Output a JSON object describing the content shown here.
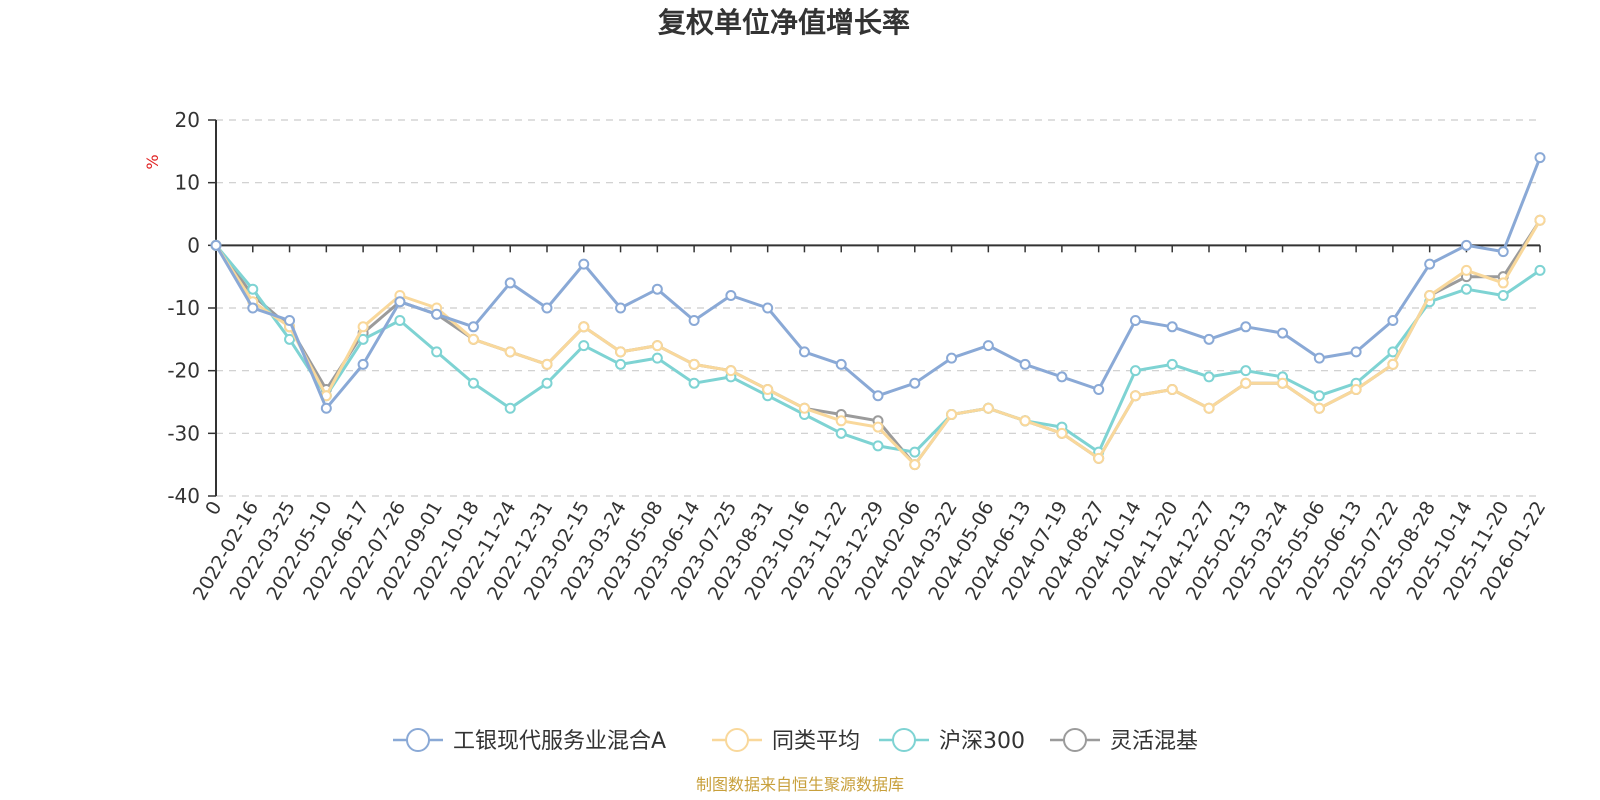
{
  "chart_data": {
    "type": "line",
    "title": "复权单位净值增长率",
    "ylabel": "%",
    "ylim": [
      -40,
      20
    ],
    "yticks": [
      20,
      10,
      0,
      -10,
      -20,
      -30,
      -40
    ],
    "grid": true,
    "legend_position": "bottom",
    "source": "制图数据来自恒生聚源数据库",
    "x": [
      "0",
      "2022-02-16",
      "2022-03-25",
      "2022-05-10",
      "2022-06-17",
      "2022-07-26",
      "2022-09-01",
      "2022-10-18",
      "2022-11-24",
      "2022-12-31",
      "2023-02-15",
      "2023-03-24",
      "2023-05-08",
      "2023-06-14",
      "2023-07-25",
      "2023-08-31",
      "2023-10-16",
      "2023-11-22",
      "2023-12-29",
      "2024-02-06",
      "2024-03-22",
      "2024-05-06",
      "2024-06-13",
      "2024-07-19",
      "2024-08-27",
      "2024-10-14",
      "2024-11-20",
      "2024-12-27",
      "2025-02-13",
      "2025-03-24",
      "2025-05-06",
      "2025-06-13",
      "2025-07-22",
      "2025-08-28",
      "2025-10-14",
      "2025-11-20",
      "2026-01-22"
    ],
    "series": [
      {
        "name": "工银现代服务业混合A",
        "color": "#8aa9d6",
        "values": [
          0,
          -10,
          -12,
          -26,
          -19,
          -9,
          -11,
          -13,
          -6,
          -10,
          -3,
          -10,
          -7,
          -12,
          -8,
          -10,
          -17,
          -19,
          -24,
          -22,
          -18,
          -16,
          -19,
          -21,
          -23,
          -12,
          -13,
          -15,
          -13,
          -14,
          -18,
          -17,
          -12,
          -3,
          0,
          -1,
          14
        ]
      },
      {
        "name": "同类平均",
        "color": "#f9d89b",
        "values": [
          0,
          -9,
          -13,
          -24,
          -13,
          -8,
          -10,
          -15,
          -17,
          -19,
          -13,
          -17,
          -16,
          -19,
          -20,
          -23,
          -26,
          -28,
          -29,
          -35,
          -27,
          -26,
          -28,
          -30,
          -34,
          -24,
          -23,
          -26,
          -22,
          -22,
          -26,
          -23,
          -19,
          -8,
          -4,
          -6,
          4
        ]
      },
      {
        "name": "沪深300",
        "color": "#7ed3d3",
        "values": [
          0,
          -7,
          -15,
          -24,
          -15,
          -12,
          -17,
          -22,
          -26,
          -22,
          -16,
          -19,
          -18,
          -22,
          -21,
          -24,
          -27,
          -30,
          -32,
          -33,
          -27,
          -26,
          -28,
          -29,
          -33,
          -20,
          -19,
          -21,
          -20,
          -21,
          -24,
          -22,
          -17,
          -9,
          -7,
          -8,
          -4
        ]
      },
      {
        "name": "灵活混基",
        "color": "#9b9b9b",
        "values": [
          0,
          -8,
          -13,
          -23,
          -14,
          -9,
          -11,
          -15,
          -17,
          -19,
          -13,
          -17,
          -16,
          -19,
          -20,
          -23,
          -26,
          -27,
          -28,
          -35,
          -27,
          -26,
          -28,
          -30,
          -34,
          -24,
          -23,
          -26,
          -22,
          -22,
          -26,
          -23,
          -19,
          -8,
          -5,
          -5,
          4
        ]
      }
    ]
  }
}
